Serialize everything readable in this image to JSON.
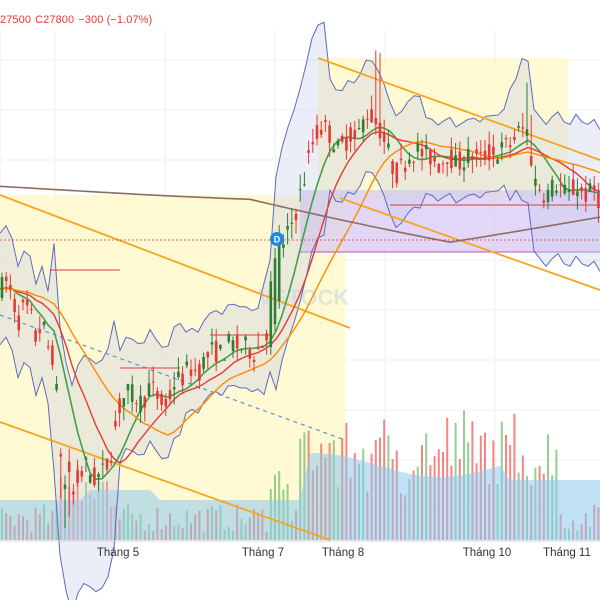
{
  "legend": {
    "open": "27500",
    "close": "C27800",
    "change": "−300 (−1.07%)"
  },
  "watermark": "VSTOCK",
  "event_marker": "D",
  "colors": {
    "up": "#2e7d32",
    "down": "#e53935",
    "bb_band": "#5c6bc0",
    "bb_fill": "#c5cae9",
    "ma_fast": "#43a047",
    "ma_mid": "#e53935",
    "ma_slow": "#fb8c00",
    "ma_long": "#8d6e63",
    "channel": "#f5a623",
    "volume_area": "#8ec9f0",
    "zone_yellow": "#fff8c4",
    "zone_purple": "#d6c6f3"
  },
  "chart_data": {
    "type": "candlestick",
    "x_axis_ticks": [
      "Tháng 5",
      "Tháng 7",
      "Tháng 8",
      "Tháng 10",
      "Tháng 11"
    ],
    "last_close": 27800,
    "change": -300,
    "change_percent": -1.07,
    "grid": true,
    "indicators": [
      "Bollinger Bands",
      "Moving averages",
      "Volume"
    ],
    "price_path": [
      [
        0,
        24.3
      ],
      [
        6,
        24.6
      ],
      [
        12,
        24.1
      ],
      [
        18,
        23.0
      ],
      [
        24,
        23.6
      ],
      [
        30,
        23.4
      ],
      [
        36,
        22.3
      ],
      [
        42,
        23.0
      ],
      [
        48,
        22.0
      ],
      [
        54,
        21.6
      ],
      [
        60,
        18.3
      ],
      [
        64,
        16.2
      ],
      [
        68,
        17.6
      ],
      [
        72,
        16.0
      ],
      [
        78,
        16.8
      ],
      [
        86,
        17.3
      ],
      [
        94,
        16.8
      ],
      [
        102,
        17.0
      ],
      [
        110,
        17.6
      ],
      [
        118,
        19.5
      ],
      [
        126,
        20.2
      ],
      [
        134,
        20.1
      ],
      [
        142,
        19.8
      ],
      [
        150,
        20.5
      ],
      [
        158,
        20.0
      ],
      [
        166,
        19.6
      ],
      [
        174,
        20.6
      ],
      [
        182,
        20.8
      ],
      [
        190,
        21.2
      ],
      [
        198,
        21.0
      ],
      [
        206,
        21.6
      ],
      [
        214,
        21.9
      ],
      [
        222,
        21.7
      ],
      [
        230,
        22.2
      ],
      [
        238,
        22.0
      ],
      [
        246,
        22.0
      ],
      [
        254,
        21.8
      ],
      [
        262,
        22.1
      ],
      [
        268,
        22.8
      ],
      [
        274,
        24.1
      ],
      [
        280,
        25.4
      ],
      [
        288,
        26.5
      ],
      [
        296,
        27.4
      ],
      [
        304,
        28.6
      ],
      [
        312,
        30.0
      ],
      [
        320,
        30.7
      ],
      [
        326,
        30.6
      ],
      [
        332,
        30.3
      ],
      [
        338,
        29.8
      ],
      [
        344,
        30.0
      ],
      [
        350,
        30.5
      ],
      [
        356,
        30.1
      ],
      [
        362,
        30.8
      ],
      [
        368,
        31.3
      ],
      [
        374,
        31.0
      ],
      [
        380,
        30.6
      ],
      [
        386,
        30.0
      ],
      [
        392,
        29.2
      ],
      [
        398,
        28.8
      ],
      [
        404,
        29.3
      ],
      [
        410,
        29.6
      ],
      [
        416,
        29.8
      ],
      [
        424,
        29.6
      ],
      [
        432,
        29.5
      ],
      [
        440,
        29.2
      ],
      [
        448,
        29.7
      ],
      [
        456,
        29.2
      ],
      [
        464,
        29.4
      ],
      [
        472,
        29.6
      ],
      [
        480,
        29.4
      ],
      [
        488,
        29.7
      ],
      [
        496,
        29.6
      ],
      [
        504,
        29.9
      ],
      [
        510,
        30.0
      ],
      [
        516,
        30.4
      ],
      [
        522,
        30.6
      ],
      [
        528,
        30.5
      ],
      [
        534,
        28.6
      ],
      [
        540,
        28.3
      ],
      [
        546,
        28.0
      ],
      [
        552,
        28.3
      ],
      [
        558,
        28.5
      ],
      [
        564,
        28.1
      ],
      [
        570,
        28.0
      ],
      [
        576,
        28.4
      ],
      [
        582,
        28.1
      ],
      [
        588,
        28.0
      ],
      [
        594,
        28.2
      ],
      [
        600,
        27.8
      ]
    ]
  }
}
